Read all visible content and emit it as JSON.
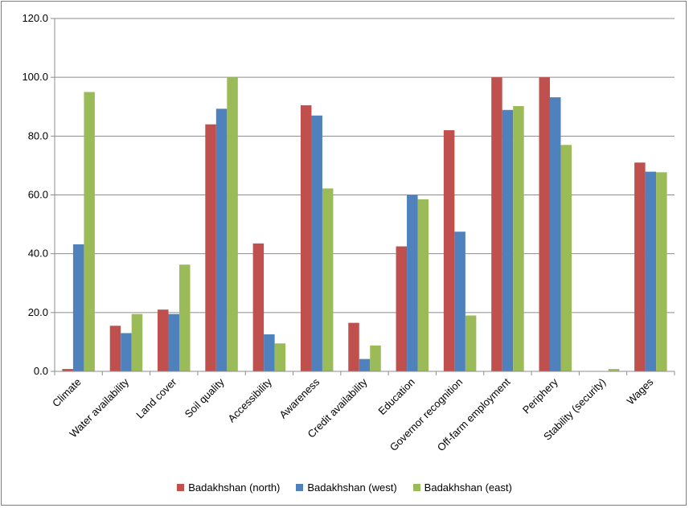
{
  "chart_data": {
    "type": "bar",
    "title": "",
    "xlabel": "",
    "ylabel": "",
    "ylim": [
      0,
      120
    ],
    "yticks": [
      "0.0",
      "20.0",
      "40.0",
      "60.0",
      "80.0",
      "100.0",
      "120.0"
    ],
    "grid": true,
    "legend_position": "bottom",
    "categories": [
      "Climate",
      "Water availability",
      "Land cover",
      "Soil quality",
      "Accessibility",
      "Awareness",
      "Credit availability",
      "Education",
      "Governor recognition",
      "Off-farm employment",
      "Periphery",
      "Stability (security)",
      "Wages"
    ],
    "series": [
      {
        "name": "Badakhshan (north)",
        "color": "#c0504d",
        "values": [
          0.8,
          15.5,
          21.0,
          84.0,
          43.5,
          90.5,
          16.5,
          42.5,
          82.0,
          100.0,
          100.0,
          0.0,
          71.0
        ]
      },
      {
        "name": "Badakhshan (west)",
        "color": "#4f81bd",
        "values": [
          43.2,
          13.0,
          19.5,
          89.3,
          12.6,
          87.0,
          4.2,
          60.0,
          47.5,
          88.9,
          93.2,
          0.0,
          67.9
        ]
      },
      {
        "name": "Badakhshan (east)",
        "color": "#9bbb59",
        "values": [
          95.0,
          19.5,
          36.3,
          100.0,
          9.5,
          62.2,
          8.8,
          58.5,
          19.0,
          90.2,
          77.0,
          0.8,
          67.7
        ]
      }
    ]
  }
}
